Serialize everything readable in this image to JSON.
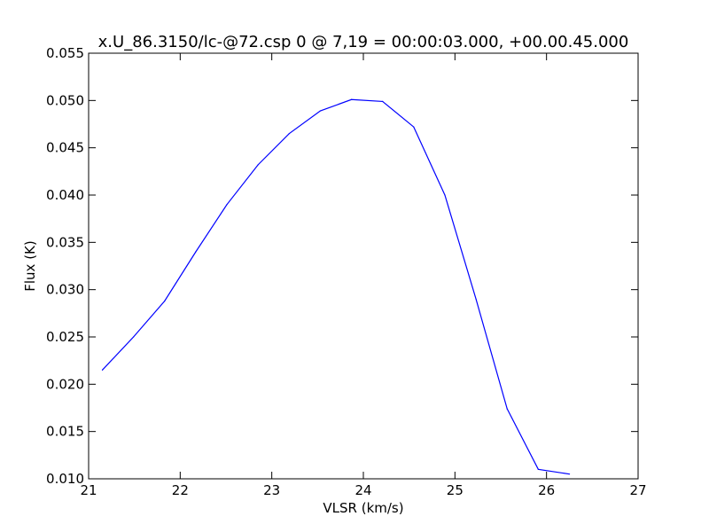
{
  "chart_data": {
    "type": "line",
    "title": "x.U_86.3150/lc-@72.csp 0 @ 7,19 = 00:00:03.000, +00.00.45.000",
    "xlabel": "VLSR (km/s)",
    "ylabel": "Flux (K)",
    "xlim": [
      21,
      27
    ],
    "ylim": [
      0.01,
      0.055
    ],
    "xticks": [
      "21",
      "22",
      "23",
      "24",
      "25",
      "26",
      "27"
    ],
    "yticks": [
      "0.010",
      "0.015",
      "0.020",
      "0.025",
      "0.030",
      "0.035",
      "0.040",
      "0.045",
      "0.050",
      "0.055"
    ],
    "grid": false,
    "series": [
      {
        "color": "#0000ff",
        "x": [
          21.15,
          21.49,
          21.83,
          22.17,
          22.51,
          22.85,
          23.19,
          23.53,
          23.87,
          24.21,
          24.55,
          24.89,
          25.23,
          25.57,
          25.91,
          26.25
        ],
        "y": [
          0.0215,
          0.025,
          0.0288,
          0.034,
          0.039,
          0.0432,
          0.0465,
          0.0489,
          0.0501,
          0.0499,
          0.0472,
          0.04,
          0.029,
          0.0174,
          0.011,
          0.0105
        ]
      }
    ]
  }
}
